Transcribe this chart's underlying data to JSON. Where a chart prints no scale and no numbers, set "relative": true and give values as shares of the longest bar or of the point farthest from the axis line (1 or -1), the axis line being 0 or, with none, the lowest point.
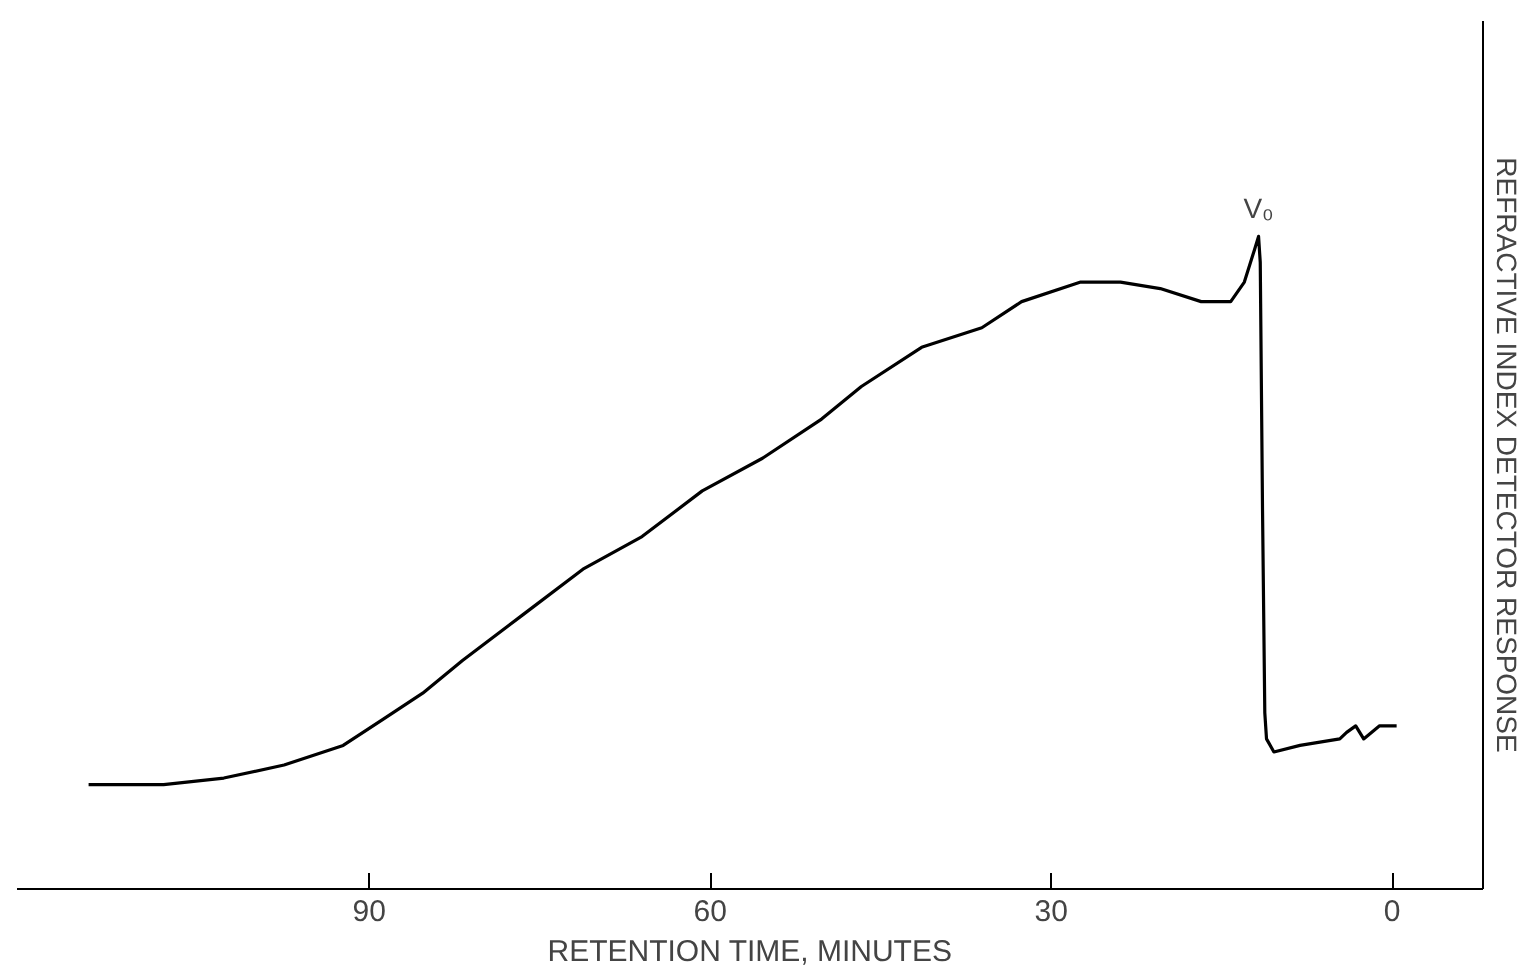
{
  "chart_data": {
    "type": "line",
    "relative": true,
    "xlabel": "RETENTION TIME, MINUTES",
    "ylabel": "REFRACTIVE INDEX DETECTOR RESPONSE",
    "x": [
      114.7,
      112.5,
      108.1,
      102.8,
      97.5,
      92.3,
      88.8,
      85.3,
      81.8,
      76.5,
      71.2,
      66.0,
      60.7,
      55.4,
      50.2,
      46.7,
      41.4,
      36.1,
      32.6,
      27.4,
      23.9,
      20.4,
      16.8,
      14.2,
      13.0,
      12.1,
      11.75,
      11.6,
      11.4,
      11.2,
      11.05,
      10.4,
      8.1,
      4.6,
      4.0,
      3.2,
      2.5,
      1.1,
      -0.4
    ],
    "series": [
      {
        "color": "#000000",
        "values": [
          0.16,
          0.16,
          0.16,
          0.17,
          0.19,
          0.22,
          0.26,
          0.3,
          0.35,
          0.42,
          0.49,
          0.54,
          0.61,
          0.66,
          0.72,
          0.77,
          0.83,
          0.86,
          0.9,
          0.93,
          0.93,
          0.92,
          0.9,
          0.9,
          0.93,
          0.98,
          1.0,
          0.96,
          0.58,
          0.27,
          0.23,
          0.21,
          0.22,
          0.23,
          0.24,
          0.25,
          0.23,
          0.25,
          0.25
        ]
      }
    ],
    "xlim": [
      121,
      -8
    ],
    "xticks": [
      90,
      60,
      30,
      0
    ],
    "grid": false,
    "annotations": [
      {
        "text": "V₀",
        "x": 11.75,
        "y": 1.0
      }
    ]
  }
}
